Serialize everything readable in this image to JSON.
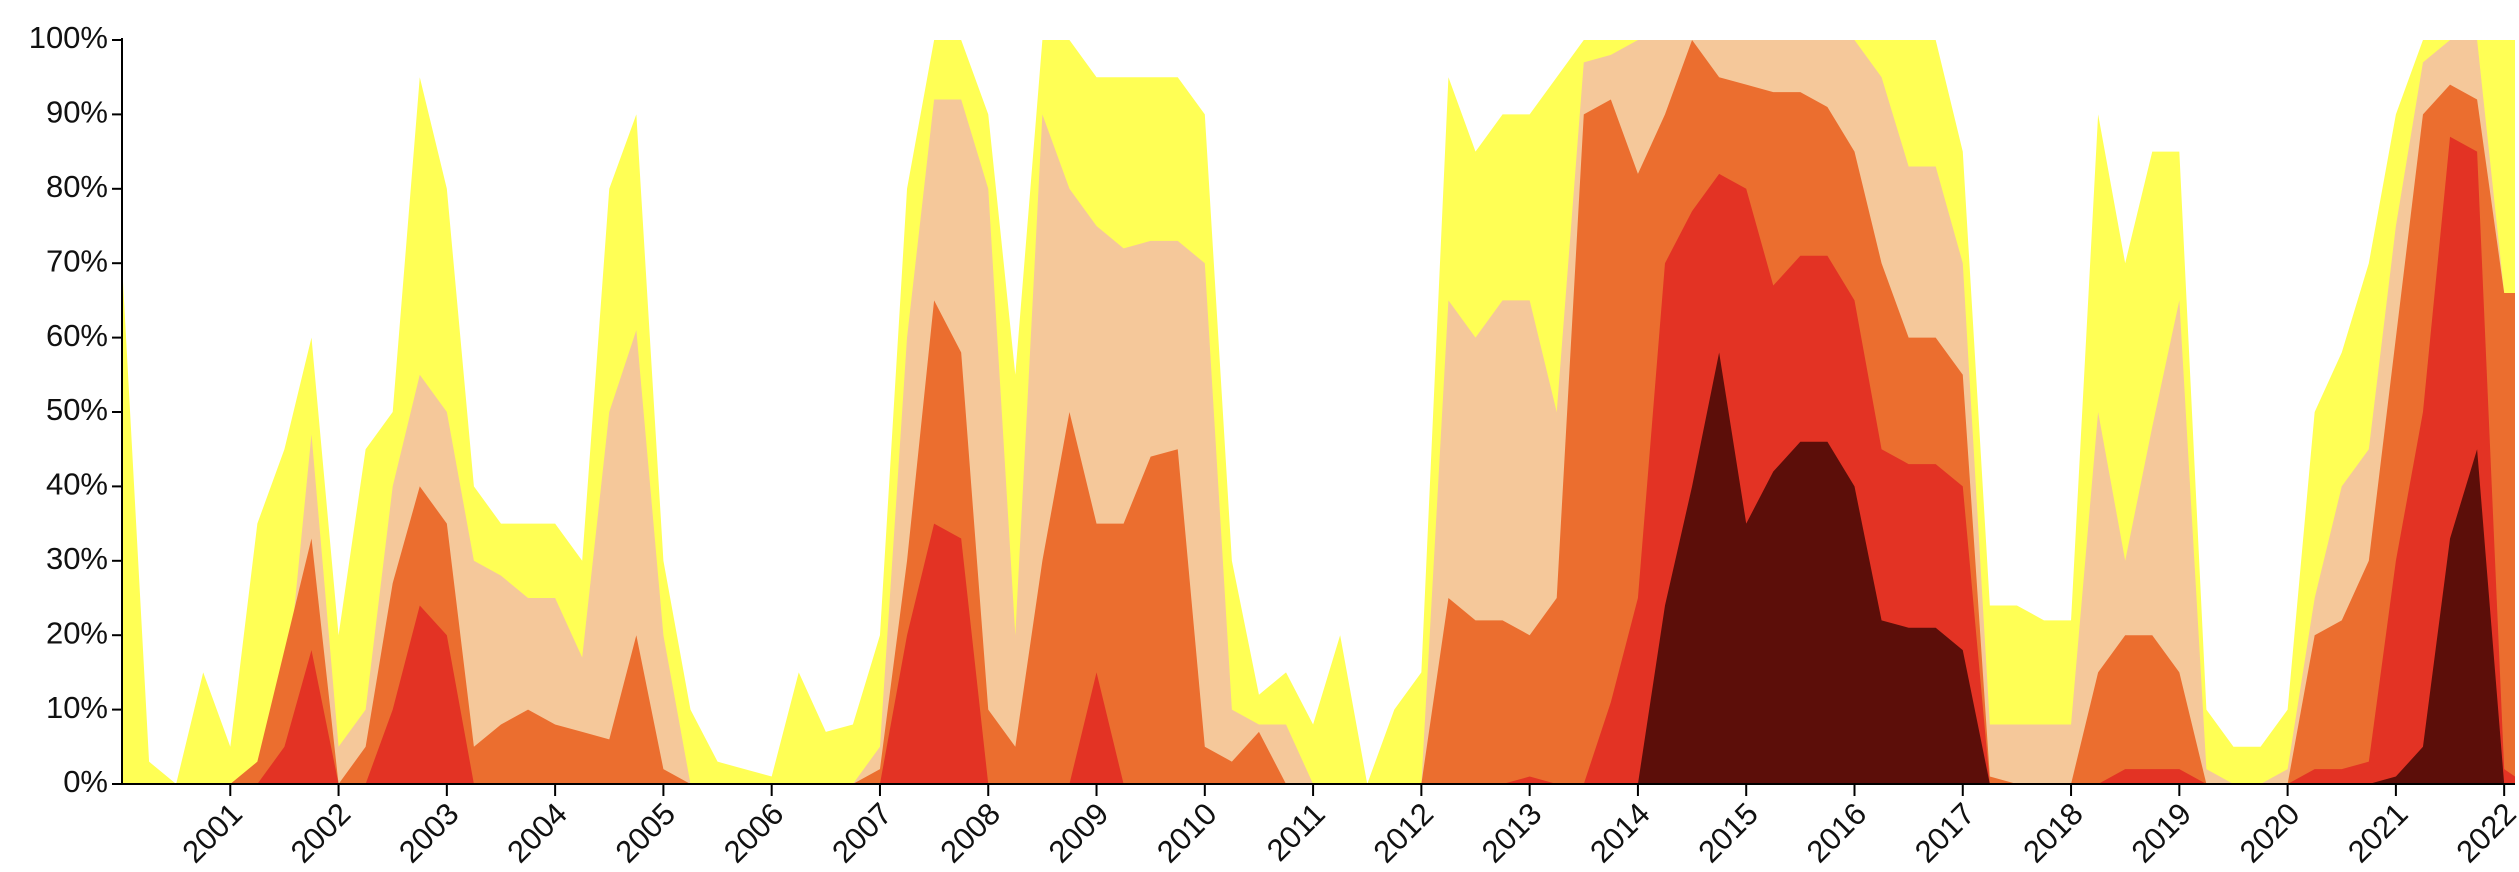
{
  "chart_data": {
    "type": "area",
    "x": [
      2000,
      2000.25,
      2000.5,
      2000.75,
      2001,
      2001.25,
      2001.5,
      2001.75,
      2002,
      2002.25,
      2002.5,
      2002.75,
      2003,
      2003.25,
      2003.5,
      2003.75,
      2004,
      2004.25,
      2004.5,
      2004.75,
      2005,
      2005.25,
      2005.5,
      2005.75,
      2006,
      2006.25,
      2006.5,
      2006.75,
      2007,
      2007.25,
      2007.5,
      2007.75,
      2008,
      2008.25,
      2008.5,
      2008.75,
      2009,
      2009.25,
      2009.5,
      2009.75,
      2010,
      2010.25,
      2010.5,
      2010.75,
      2011,
      2011.25,
      2011.5,
      2011.75,
      2012,
      2012.25,
      2012.5,
      2012.75,
      2013,
      2013.25,
      2013.5,
      2013.75,
      2014,
      2014.25,
      2014.5,
      2014.75,
      2015,
      2015.25,
      2015.5,
      2015.75,
      2016,
      2016.25,
      2016.5,
      2016.75,
      2017,
      2017.25,
      2017.5,
      2017.75,
      2018,
      2018.25,
      2018.5,
      2018.75,
      2019,
      2019.25,
      2019.5,
      2019.75,
      2020,
      2020.25,
      2020.5,
      2020.75,
      2021,
      2021.25,
      2021.5,
      2021.75,
      2022,
      2022.1
    ],
    "series": [
      {
        "color": "#ffff55",
        "values": [
          70,
          3,
          0,
          15,
          5,
          35,
          45,
          60,
          20,
          45,
          50,
          95,
          80,
          40,
          35,
          35,
          35,
          30,
          80,
          90,
          30,
          10,
          3,
          2,
          1,
          15,
          7,
          8,
          20,
          80,
          100,
          100,
          90,
          55,
          100,
          100,
          95,
          95,
          95,
          95,
          90,
          30,
          12,
          15,
          8,
          20,
          0,
          10,
          15,
          95,
          85,
          90,
          90,
          95,
          100,
          100,
          100,
          100,
          100,
          100,
          100,
          100,
          100,
          100,
          100,
          100,
          100,
          100,
          85,
          24,
          24,
          22,
          22,
          90,
          70,
          85,
          85,
          10,
          5,
          5,
          10,
          50,
          58,
          70,
          90,
          100,
          100,
          100,
          100,
          100
        ]
      },
      {
        "color": "#f5c89a",
        "values": [
          0,
          0,
          0,
          0,
          0,
          0,
          10,
          47,
          5,
          10,
          40,
          55,
          50,
          30,
          28,
          25,
          25,
          17,
          50,
          61,
          20,
          0,
          0,
          0,
          0,
          0,
          0,
          0,
          5,
          60,
          92,
          92,
          80,
          20,
          90,
          80,
          75,
          72,
          73,
          73,
          70,
          10,
          8,
          8,
          0,
          0,
          0,
          0,
          0,
          65,
          60,
          65,
          65,
          50,
          97,
          98,
          100,
          100,
          100,
          100,
          100,
          100,
          100,
          100,
          100,
          95,
          83,
          83,
          70,
          8,
          8,
          8,
          8,
          50,
          30,
          48,
          65,
          2,
          0,
          0,
          2,
          25,
          40,
          45,
          75,
          97,
          100,
          100,
          66,
          66
        ]
      },
      {
        "color": "#eb6e2f",
        "values": [
          0,
          0,
          0,
          0,
          0,
          3,
          18,
          33,
          0,
          5,
          27,
          40,
          35,
          5,
          8,
          10,
          8,
          7,
          6,
          20,
          2,
          0,
          0,
          0,
          0,
          0,
          0,
          0,
          2,
          30,
          65,
          58,
          10,
          5,
          30,
          50,
          35,
          35,
          44,
          45,
          5,
          3,
          7,
          0,
          0,
          0,
          0,
          0,
          0,
          25,
          22,
          22,
          20,
          25,
          90,
          92,
          82,
          90,
          100,
          95,
          94,
          93,
          93,
          91,
          85,
          70,
          60,
          60,
          55,
          1,
          0,
          0,
          0,
          15,
          20,
          20,
          15,
          0,
          0,
          0,
          0,
          20,
          22,
          30,
          60,
          90,
          94,
          92,
          66,
          66
        ]
      },
      {
        "color": "#e33324",
        "values": [
          0,
          0,
          0,
          0,
          0,
          0,
          5,
          18,
          0,
          0,
          10,
          24,
          20,
          0,
          0,
          0,
          0,
          0,
          0,
          0,
          0,
          0,
          0,
          0,
          0,
          0,
          0,
          0,
          0,
          20,
          35,
          33,
          0,
          0,
          0,
          0,
          15,
          0,
          0,
          0,
          0,
          0,
          0,
          0,
          0,
          0,
          0,
          0,
          0,
          0,
          0,
          0,
          1,
          0,
          0,
          11,
          25,
          70,
          77,
          82,
          80,
          67,
          71,
          71,
          65,
          45,
          43,
          43,
          40,
          0,
          0,
          0,
          0,
          0,
          2,
          2,
          2,
          0,
          0,
          0,
          0,
          2,
          2,
          3,
          30,
          50,
          87,
          85,
          2,
          1
        ]
      },
      {
        "color": "#5c0e09",
        "values": [
          0,
          0,
          0,
          0,
          0,
          0,
          0,
          0,
          0,
          0,
          0,
          0,
          0,
          0,
          0,
          0,
          0,
          0,
          0,
          0,
          0,
          0,
          0,
          0,
          0,
          0,
          0,
          0,
          0,
          0,
          0,
          0,
          0,
          0,
          0,
          0,
          0,
          0,
          0,
          0,
          0,
          0,
          0,
          0,
          0,
          0,
          0,
          0,
          0,
          0,
          0,
          0,
          0,
          0,
          0,
          0,
          0,
          24,
          40,
          58,
          35,
          42,
          46,
          46,
          40,
          22,
          21,
          21,
          18,
          0,
          0,
          0,
          0,
          0,
          0,
          0,
          0,
          0,
          0,
          0,
          0,
          0,
          0,
          0,
          1,
          5,
          33,
          45,
          0,
          0
        ]
      }
    ],
    "xlim": [
      2000,
      2022.1
    ],
    "xticks": [
      2001,
      2002,
      2003,
      2004,
      2005,
      2006,
      2007,
      2008,
      2009,
      2010,
      2011,
      2012,
      2013,
      2014,
      2015,
      2016,
      2017,
      2018,
      2019,
      2020,
      2021,
      2022
    ],
    "ylim": [
      0,
      100
    ],
    "yticks": [
      {
        "value": 0,
        "label": "0%"
      },
      {
        "value": 10,
        "label": "10%"
      },
      {
        "value": 20,
        "label": "20%"
      },
      {
        "value": 30,
        "label": "30%"
      },
      {
        "value": 40,
        "label": "40%"
      },
      {
        "value": 50,
        "label": "50%"
      },
      {
        "value": 60,
        "label": "60%"
      },
      {
        "value": 70,
        "label": "70%"
      },
      {
        "value": 80,
        "label": "80%"
      },
      {
        "value": 90,
        "label": "90%"
      },
      {
        "value": 100,
        "label": "100%"
      }
    ]
  }
}
